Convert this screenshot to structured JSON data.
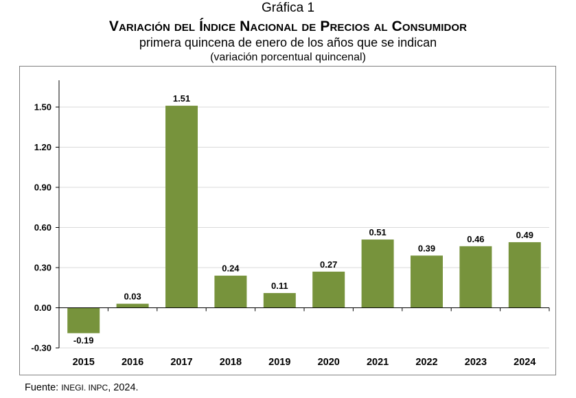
{
  "figure": {
    "label": "Gráfica 1",
    "title": "Variación del Índice Nacional de Precios al Consumidor",
    "subtitle": "primera quincena de enero de los años que se indican",
    "units": "(variación porcentual quincenal)",
    "source_prefix": "Fuente: ",
    "source_org": "INEGI. INPC",
    "source_year": ", 2024."
  },
  "chart_data": {
    "type": "bar",
    "categories": [
      "2015",
      "2016",
      "2017",
      "2018",
      "2019",
      "2020",
      "2021",
      "2022",
      "2023",
      "2024"
    ],
    "values": [
      -0.19,
      0.03,
      1.51,
      0.24,
      0.11,
      0.27,
      0.51,
      0.39,
      0.46,
      0.49
    ],
    "data_labels": [
      "-0.19",
      "0.03",
      "1.51",
      "0.24",
      "0.11",
      "0.27",
      "0.51",
      "0.39",
      "0.46",
      "0.49"
    ],
    "ylim": [
      -0.3,
      1.5
    ],
    "yticks": [
      -0.3,
      0.0,
      0.3,
      0.6,
      0.9,
      1.2,
      1.5
    ],
    "ytick_labels": [
      "-0.30",
      "0.00",
      "0.30",
      "0.60",
      "0.90",
      "1.20",
      "1.50"
    ],
    "bar_color": "#77933c",
    "grid": true,
    "legend": "none",
    "xlabel": "",
    "ylabel": ""
  }
}
